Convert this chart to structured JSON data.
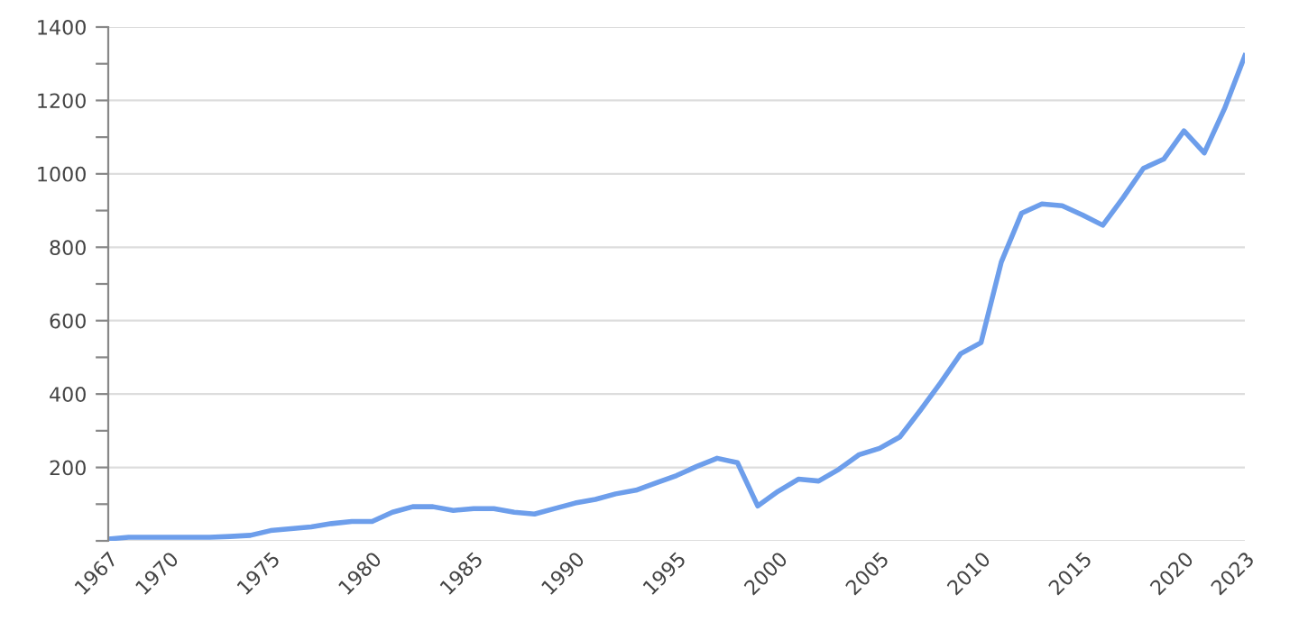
{
  "chart_data": {
    "type": "line",
    "x": [
      1967,
      1968,
      1969,
      1970,
      1971,
      1972,
      1973,
      1974,
      1975,
      1976,
      1977,
      1978,
      1979,
      1980,
      1981,
      1982,
      1983,
      1984,
      1985,
      1986,
      1987,
      1988,
      1989,
      1990,
      1991,
      1992,
      1993,
      1994,
      1995,
      1996,
      1997,
      1998,
      1999,
      2000,
      2001,
      2002,
      2003,
      2004,
      2005,
      2006,
      2007,
      2008,
      2009,
      2010,
      2011,
      2012,
      2013,
      2014,
      2015,
      2016,
      2017,
      2018,
      2019,
      2020,
      2021,
      2022,
      2023
    ],
    "series": [
      {
        "color": "#6d9eeb",
        "values": [
          5,
          10,
          10,
          10,
          10,
          10,
          12,
          15,
          28,
          33,
          38,
          47,
          53,
          53,
          78,
          93,
          93,
          83,
          88,
          88,
          78,
          73,
          88,
          103,
          113,
          128,
          138,
          158,
          178,
          203,
          225,
          213,
          95,
          135,
          168,
          163,
          195,
          235,
          252,
          283,
          355,
          430,
          510,
          540,
          760,
          893,
          918,
          913,
          888,
          860,
          935,
          1015,
          1040,
          1117,
          1057,
          1178,
          1322
        ]
      }
    ],
    "xlim": [
      1967,
      2023
    ],
    "xticks": [
      1967,
      1970,
      1975,
      1980,
      1985,
      1990,
      1995,
      2000,
      2005,
      2010,
      2015,
      2020,
      2023
    ],
    "ylim": [
      0,
      1400
    ],
    "yticks": [
      {
        "value": 0,
        "label": null
      },
      {
        "value": 100,
        "label": null
      },
      200,
      {
        "value": 300,
        "label": null
      },
      400,
      {
        "value": 500,
        "label": null
      },
      600,
      {
        "value": 700,
        "label": null
      },
      800,
      {
        "value": 900,
        "label": null
      },
      1000,
      {
        "value": 1100,
        "label": null
      },
      1200,
      {
        "value": 1300,
        "label": null
      },
      1400
    ],
    "grid": "y",
    "marker": "none",
    "line_style": "solid"
  }
}
